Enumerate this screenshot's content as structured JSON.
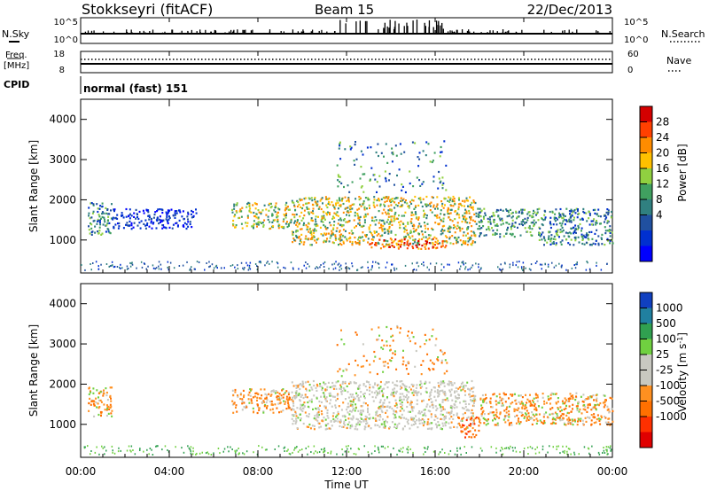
{
  "header": {
    "station": "Stokkseyri (fitACF)",
    "beam": "Beam 15",
    "date": "22/Dec/2013"
  },
  "status_panels": {
    "nsky_label": "N.Sky",
    "nsearch_label": "N.Search",
    "freq_label_line1": "Freq.",
    "freq_label_line2": "[MHz]",
    "nave_label": "Nave",
    "cpid_label": "CPID",
    "cpid_value": "normal (fast) 151",
    "noise_ticks": [
      "10^5",
      "10^0"
    ],
    "freq_ticks": [
      "18",
      "8"
    ],
    "nave_ticks": [
      "60",
      "0"
    ]
  },
  "chart_data": [
    {
      "type": "heatmap",
      "name": "power",
      "ylabel": "Slant Range [km]",
      "colorbar_label": "Power [dB]",
      "colorbar_ticks": [
        "28",
        "24",
        "20",
        "16",
        "12",
        "8",
        "4"
      ],
      "colorbar_colors": [
        "#d40000",
        "#ff4000",
        "#ff8c00",
        "#ffc000",
        "#90d040",
        "#40a060",
        "#308080",
        "#2050a0",
        "#0030d0",
        "#0000ff"
      ],
      "yticks": [
        1000,
        2000,
        3000,
        4000
      ],
      "ylim": [
        180,
        4500
      ],
      "xlim_hours": [
        0,
        24
      ],
      "echo_bands": [
        {
          "x": [
            0.3,
            1.4
          ],
          "range": [
            1150,
            1950
          ],
          "level": "low-mid"
        },
        {
          "x": [
            1.4,
            5.2
          ],
          "range": [
            1300,
            1800
          ],
          "level": "low"
        },
        {
          "x": [
            6.8,
            9.5
          ],
          "range": [
            1300,
            1950
          ],
          "level": "mid-high"
        },
        {
          "x": [
            9.5,
            17.8
          ],
          "range": [
            900,
            2100
          ],
          "level": "high"
        },
        {
          "x": [
            13.0,
            16.5
          ],
          "range": [
            800,
            1050
          ],
          "level": "very-high"
        },
        {
          "x": [
            17.8,
            20.5
          ],
          "range": [
            1100,
            1800
          ],
          "level": "mid"
        },
        {
          "x": [
            20.5,
            24.0
          ],
          "range": [
            900,
            1800
          ],
          "level": "low-mid"
        },
        {
          "x": [
            11.5,
            16.5
          ],
          "range": [
            2200,
            3500
          ],
          "level": "sparse"
        }
      ]
    },
    {
      "type": "heatmap",
      "name": "velocity",
      "ylabel": "Slant Range [km]",
      "colorbar_label": "Velocity [m s^-1]",
      "colorbar_ticks": [
        "1000",
        "500",
        "100",
        "25",
        "-25",
        "-100",
        "-500",
        "-1000"
      ],
      "colorbar_colors": [
        "#1040c0",
        "#2080a0",
        "#30a050",
        "#70d040",
        "#c8c8c0",
        "#c8c8c0",
        "#ff9020",
        "#ff7000",
        "#ff3000",
        "#e00000"
      ],
      "yticks": [
        1000,
        2000,
        3000,
        4000
      ],
      "ylim": [
        180,
        4500
      ],
      "xlim_hours": [
        0,
        24
      ],
      "xticks": [
        "00:00",
        "04:00",
        "08:00",
        "12:00",
        "16:00",
        "20:00",
        "00:00"
      ],
      "xlabel": "Time UT",
      "echo_bands": [
        {
          "x": [
            0.3,
            1.4
          ],
          "range": [
            1200,
            1950
          ],
          "velocity": "negative"
        },
        {
          "x": [
            6.8,
            9.5
          ],
          "range": [
            1300,
            1900
          ],
          "velocity": "negative"
        },
        {
          "x": [
            9.5,
            17.8
          ],
          "range": [
            900,
            2100
          ],
          "velocity": "near-zero"
        },
        {
          "x": [
            17.0,
            18.0
          ],
          "range": [
            700,
            1200
          ],
          "velocity": "negative-strong"
        },
        {
          "x": [
            18.0,
            24.0
          ],
          "range": [
            1000,
            1800
          ],
          "velocity": "negative"
        },
        {
          "x": [
            11.5,
            16.5
          ],
          "range": [
            2200,
            3500
          ],
          "velocity": "negative"
        }
      ]
    }
  ]
}
